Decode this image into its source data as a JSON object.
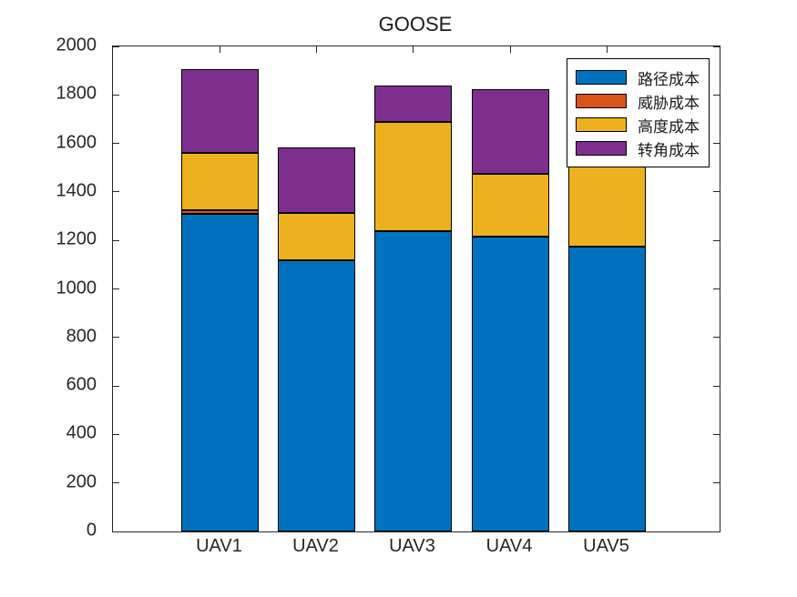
{
  "title": "GOOSE",
  "chart_data": {
    "type": "bar",
    "stacked": true,
    "title": "GOOSE",
    "xlabel": "",
    "ylabel": "",
    "categories": [
      "UAV1",
      "UAV2",
      "UAV3",
      "UAV4",
      "UAV5"
    ],
    "series": [
      {
        "name": "路径成本",
        "color": "#0072BD",
        "values": [
          1310,
          1120,
          1240,
          1215,
          1175
        ]
      },
      {
        "name": "威胁成本",
        "color": "#D95319",
        "values": [
          15,
          0,
          0,
          0,
          0
        ]
      },
      {
        "name": "高度成本",
        "color": "#EDB120",
        "values": [
          235,
          195,
          450,
          260,
          360
        ]
      },
      {
        "name": "转角成本",
        "color": "#7E2F8E",
        "values": [
          345,
          270,
          150,
          350,
          0
        ]
      }
    ],
    "stack_totals": [
      1905,
      1585,
      1840,
      1825,
      1535
    ],
    "ylim": [
      0,
      2000
    ],
    "yticks": [
      0,
      200,
      400,
      600,
      800,
      1000,
      1200,
      1400,
      1600,
      1800,
      2000
    ],
    "grid": false,
    "legend_position": "top-right",
    "axis_color": "#262626",
    "bar_edge_color": "#000000"
  }
}
